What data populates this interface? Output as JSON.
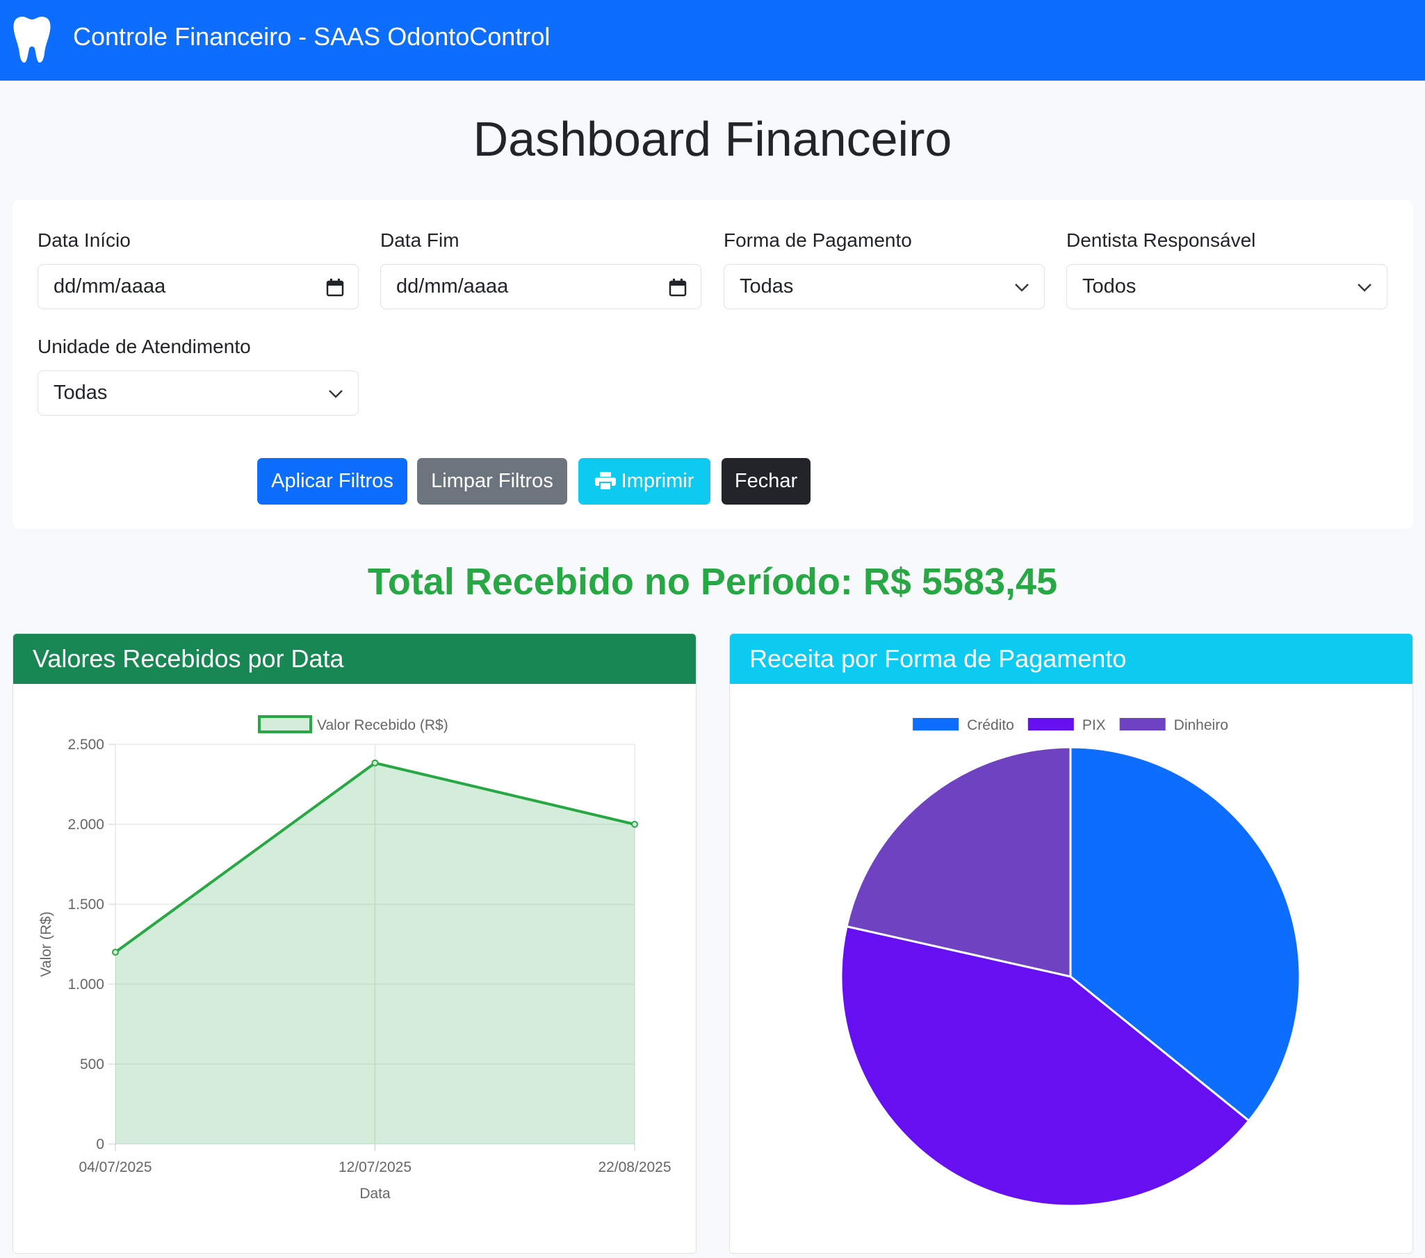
{
  "header": {
    "title": "Controle Financeiro - SAAS OdontoControl"
  },
  "page_title": "Dashboard Financeiro",
  "filters": [
    {
      "label": "Data Início",
      "value": "dd/mm/aaaa"
    },
    {
      "label": "Data Fim",
      "value": "dd/mm/aaaa"
    },
    {
      "label": "Forma de Pagamento",
      "value": "Todas"
    },
    {
      "label": "Dentista Responsável",
      "value": "Todos"
    },
    {
      "label": "Unidade de Atendimento",
      "value": "Todas"
    }
  ],
  "buttons": [
    "Aplicar Filtros",
    "Limpar Filtros",
    "Imprimir",
    "Fechar"
  ],
  "total": "Total Recebido no Período: R$ 5583,45",
  "chart_data": [
    {
      "type": "line",
      "title": "Valores Recebidos por Data",
      "categories": [
        "04/07/2025",
        "12/07/2025",
        "22/08/2025"
      ],
      "series": [
        {
          "name": "Valor Recebido (R$)",
          "color": "#28a745",
          "values": [
            1200,
            2383.45,
            2000
          ]
        }
      ],
      "ylim": [
        0,
        2500
      ],
      "yticks": [
        0,
        500,
        {
          "value": 1000,
          "label": "1.000"
        },
        {
          "value": 1500,
          "label": "1.500"
        },
        {
          "value": 2000,
          "label": "2.000"
        },
        {
          "value": 2500,
          "label": "2.500"
        }
      ],
      "xlabel": "Data",
      "ylabel": "Valor (R$)",
      "grid": true,
      "fill": true,
      "legend": "top"
    },
    {
      "type": "pie",
      "title": "Receita por Forma de Pagamento",
      "categories": [
        "Crédito",
        "PIX",
        "Dinheiro"
      ],
      "values": [
        2000,
        2383.45,
        1200
      ],
      "colors": [
        "#0d6efd",
        "#6610f2",
        "#6f42c1"
      ],
      "legend": "top"
    }
  ]
}
